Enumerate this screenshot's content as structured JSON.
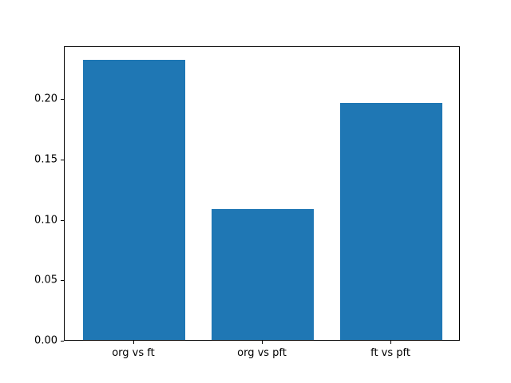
{
  "chart_data": {
    "type": "bar",
    "categories": [
      "org vs ft",
      "org vs pft",
      "ft vs pft"
    ],
    "values": [
      0.232,
      0.108,
      0.196
    ],
    "title": "",
    "xlabel": "",
    "ylabel": "",
    "ylim": [
      0,
      0.2436
    ],
    "xlim": [
      -0.54,
      2.54
    ],
    "yticks": [
      0.0,
      0.05,
      0.1,
      0.15,
      0.2
    ],
    "ytick_labels": [
      "0.00",
      "0.05",
      "0.10",
      "0.15",
      "0.20"
    ],
    "bar_color": "#1f77b4",
    "bar_width_fraction": 0.8,
    "grid": false,
    "legend": false
  }
}
